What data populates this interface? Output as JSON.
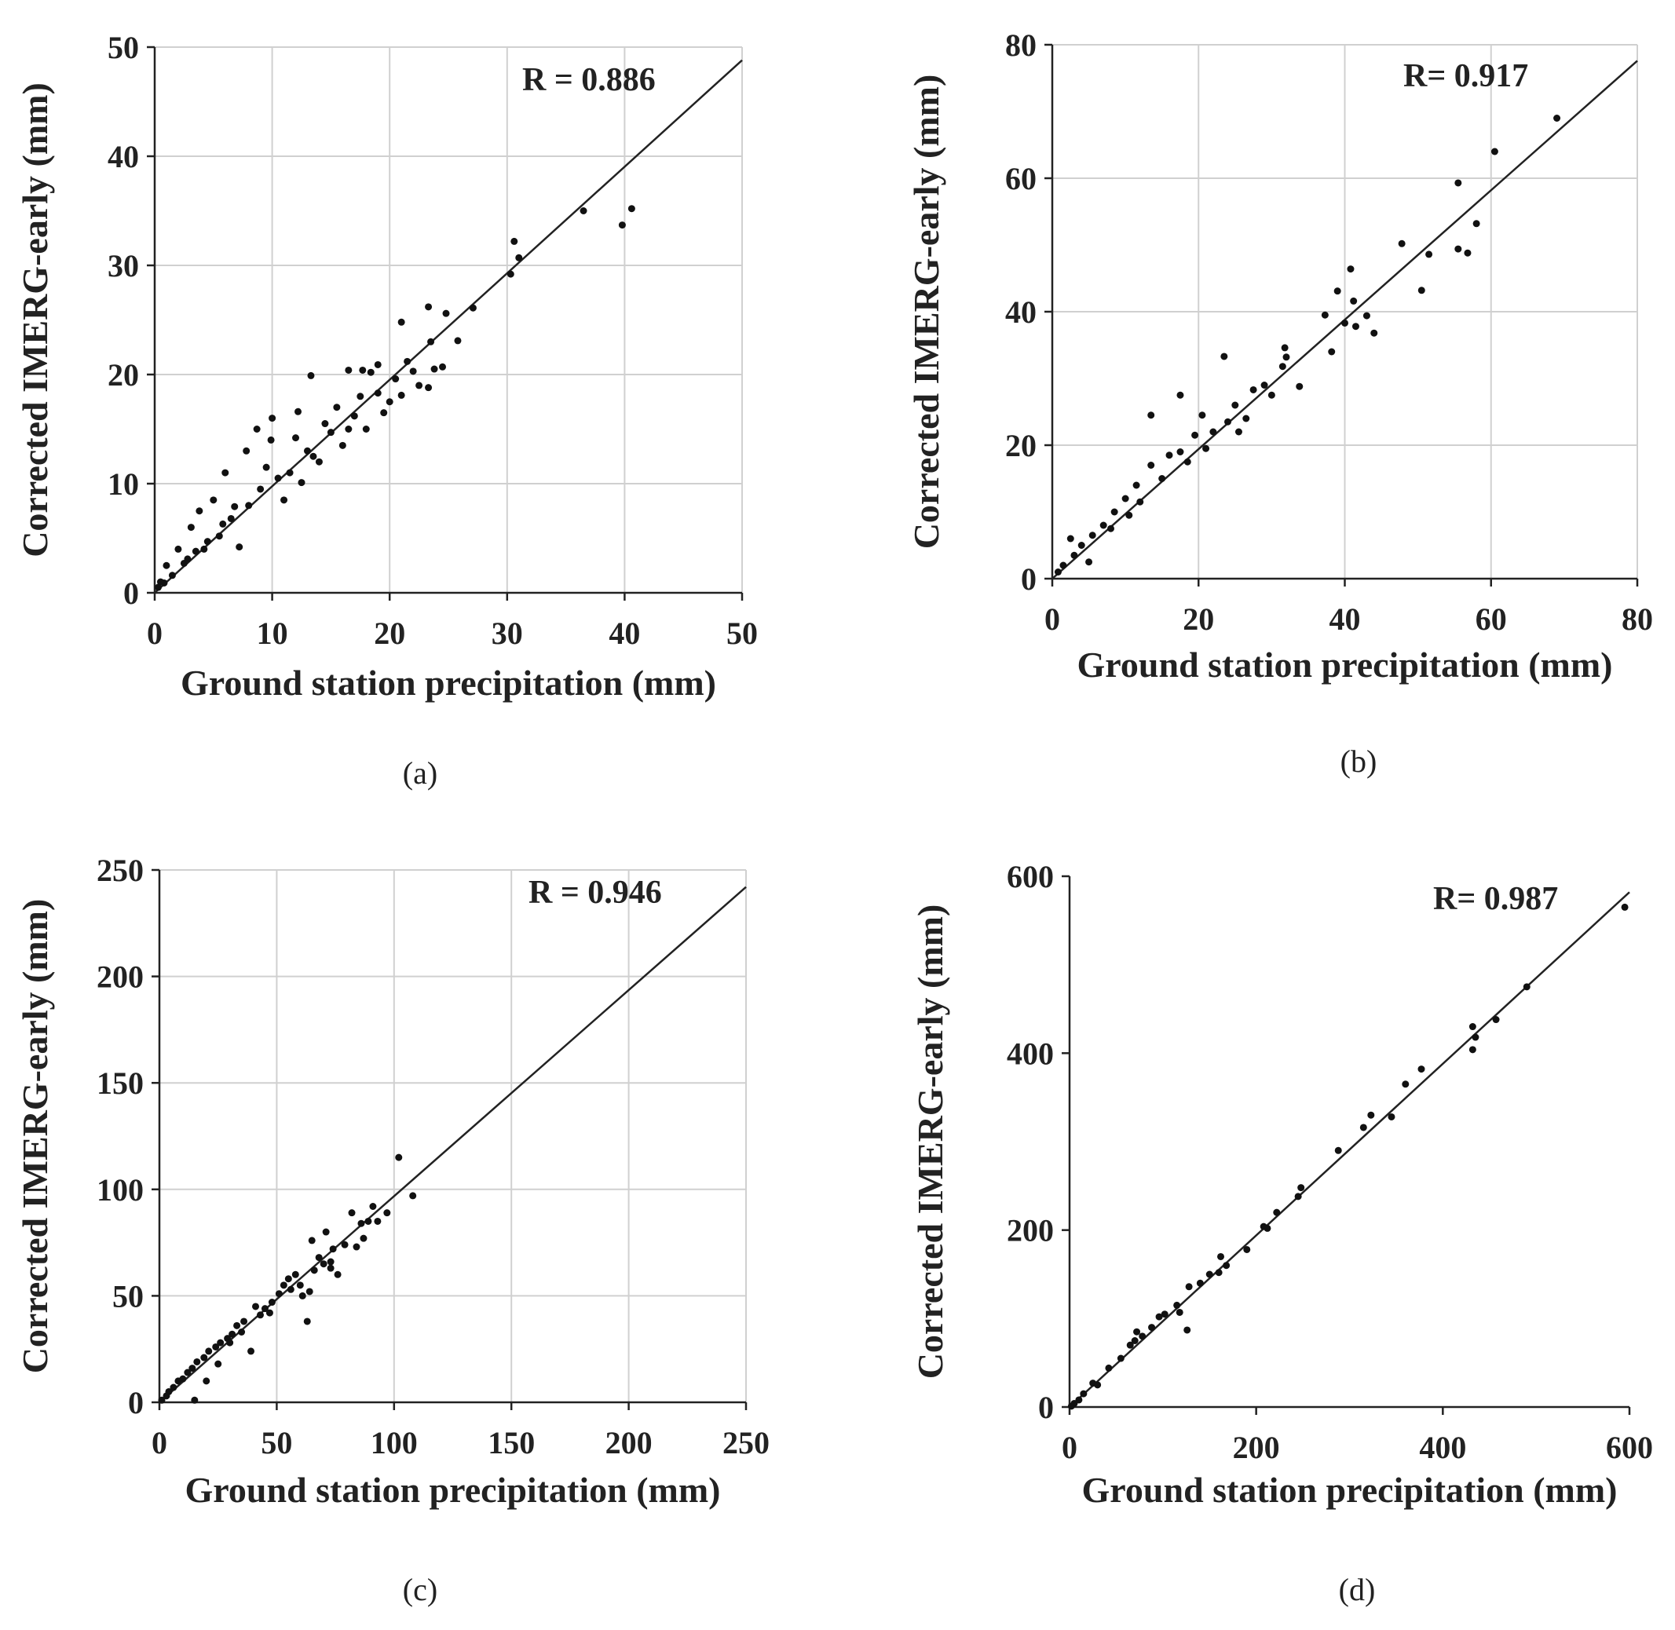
{
  "chart_data": [
    {
      "type": "scatter",
      "panel": "(a)",
      "xlabel": "Ground station precipitation (mm)",
      "ylabel": "Corrected IMERG-early (mm)",
      "annotation": "R = 0.886",
      "xlim": [
        0,
        50
      ],
      "ylim": [
        0,
        50
      ],
      "xticks": [
        0,
        10,
        20,
        30,
        40,
        50
      ],
      "yticks": [
        0,
        10,
        20,
        30,
        40,
        50
      ],
      "grid": true,
      "fit_line": {
        "x": [
          0,
          50
        ],
        "y": [
          0,
          48.8
        ]
      },
      "points": [
        [
          30.6,
          32.2
        ],
        [
          31.0,
          30.7
        ],
        [
          30.3,
          29.2
        ],
        [
          36.5,
          35.0
        ],
        [
          39.8,
          33.7
        ],
        [
          40.6,
          35.2
        ],
        [
          27.1,
          26.1
        ],
        [
          25.8,
          23.1
        ],
        [
          24.8,
          25.6
        ],
        [
          23.3,
          26.2
        ],
        [
          23.5,
          23.0
        ],
        [
          21.0,
          24.8
        ],
        [
          24.5,
          20.7
        ],
        [
          23.8,
          20.5
        ],
        [
          23.3,
          18.8
        ],
        [
          21.5,
          21.2
        ],
        [
          20.5,
          19.6
        ],
        [
          21.0,
          18.1
        ],
        [
          22.0,
          20.3
        ],
        [
          19.0,
          20.9
        ],
        [
          18.4,
          20.2
        ],
        [
          17.7,
          20.4
        ],
        [
          16.5,
          20.4
        ],
        [
          13.3,
          19.9
        ],
        [
          12.2,
          16.6
        ],
        [
          10.0,
          16.0
        ],
        [
          8.7,
          15.0
        ],
        [
          9.9,
          14.0
        ],
        [
          7.8,
          13.0
        ],
        [
          6.0,
          11.0
        ],
        [
          5.0,
          8.5
        ],
        [
          3.8,
          7.5
        ],
        [
          3.1,
          6.0
        ],
        [
          2.0,
          4.0
        ],
        [
          1.0,
          2.5
        ],
        [
          0.5,
          1.0
        ],
        [
          0.3,
          0.5
        ],
        [
          7.2,
          4.2
        ],
        [
          11.0,
          8.5
        ],
        [
          12.5,
          10.1
        ],
        [
          14.0,
          12.0
        ],
        [
          16.0,
          13.5
        ],
        [
          18.0,
          15.0
        ],
        [
          19.5,
          16.5
        ],
        [
          17.5,
          18.0
        ],
        [
          15.5,
          17.0
        ],
        [
          14.5,
          15.5
        ],
        [
          13.0,
          13.0
        ],
        [
          11.5,
          11.0
        ],
        [
          10.5,
          10.5
        ],
        [
          9.0,
          9.5
        ],
        [
          8.0,
          8.0
        ],
        [
          6.5,
          6.8
        ],
        [
          5.5,
          5.2
        ],
        [
          4.5,
          4.7
        ],
        [
          3.5,
          3.8
        ],
        [
          2.5,
          2.7
        ],
        [
          1.5,
          1.6
        ],
        [
          0.8,
          0.9
        ],
        [
          2.8,
          3.1
        ],
        [
          4.2,
          4.0
        ],
        [
          5.8,
          6.3
        ],
        [
          6.8,
          7.9
        ],
        [
          9.5,
          11.5
        ],
        [
          12.0,
          14.2
        ],
        [
          15.0,
          14.7
        ],
        [
          17.0,
          16.2
        ],
        [
          19.0,
          18.3
        ],
        [
          20.0,
          17.5
        ],
        [
          22.5,
          19.0
        ],
        [
          16.5,
          15.0
        ],
        [
          13.5,
          12.5
        ]
      ],
      "caption": "(a)"
    },
    {
      "type": "scatter",
      "panel": "(b)",
      "xlabel": "Ground station precipitation (mm)",
      "ylabel": "Corrected IMERG-early (mm)",
      "annotation": "R= 0.917",
      "xlim": [
        0,
        80
      ],
      "ylim": [
        0,
        80
      ],
      "xticks": [
        0,
        20,
        40,
        60,
        80
      ],
      "yticks": [
        0,
        20,
        40,
        60,
        80
      ],
      "grid": true,
      "fit_line": {
        "x": [
          0,
          80
        ],
        "y": [
          0,
          77.6
        ]
      },
      "points": [
        [
          69.0,
          69.0
        ],
        [
          60.5,
          64.0
        ],
        [
          55.5,
          59.3
        ],
        [
          58.0,
          53.2
        ],
        [
          55.5,
          49.4
        ],
        [
          56.8,
          48.8
        ],
        [
          51.5,
          48.6
        ],
        [
          50.5,
          43.2
        ],
        [
          47.8,
          50.2
        ],
        [
          40.8,
          46.4
        ],
        [
          41.2,
          41.6
        ],
        [
          39.0,
          43.1
        ],
        [
          37.3,
          39.5
        ],
        [
          40.0,
          38.3
        ],
        [
          43.0,
          39.4
        ],
        [
          44.0,
          36.8
        ],
        [
          41.5,
          37.8
        ],
        [
          38.2,
          34.0
        ],
        [
          33.8,
          28.8
        ],
        [
          31.8,
          34.6
        ],
        [
          32.0,
          33.2
        ],
        [
          31.5,
          31.8
        ],
        [
          23.5,
          33.3
        ],
        [
          17.5,
          27.5
        ],
        [
          13.5,
          24.5
        ],
        [
          29.0,
          29.0
        ],
        [
          30.0,
          27.5
        ],
        [
          27.5,
          28.3
        ],
        [
          25.0,
          26.0
        ],
        [
          24.0,
          23.5
        ],
        [
          22.0,
          22.0
        ],
        [
          20.5,
          24.5
        ],
        [
          19.5,
          21.5
        ],
        [
          17.5,
          19.0
        ],
        [
          16.0,
          18.5
        ],
        [
          13.5,
          17.0
        ],
        [
          11.5,
          14.0
        ],
        [
          10.0,
          12.0
        ],
        [
          8.5,
          10.0
        ],
        [
          7.0,
          8.0
        ],
        [
          5.5,
          6.5
        ],
        [
          4.0,
          5.0
        ],
        [
          2.5,
          6.0
        ],
        [
          3.0,
          3.5
        ],
        [
          1.5,
          2.0
        ],
        [
          0.8,
          1.0
        ],
        [
          5.0,
          2.5
        ],
        [
          8.0,
          7.5
        ],
        [
          10.5,
          9.5
        ],
        [
          12.0,
          11.5
        ],
        [
          15.0,
          15.0
        ],
        [
          18.5,
          17.5
        ],
        [
          21.0,
          19.5
        ],
        [
          25.5,
          22.0
        ],
        [
          26.5,
          24.0
        ]
      ],
      "caption": "(b)"
    },
    {
      "type": "scatter",
      "panel": "(c)",
      "xlabel": "Ground station precipitation (mm)",
      "ylabel": "Corrected IMERG-early (mm)",
      "annotation": "R = 0.946",
      "xlim": [
        0,
        250
      ],
      "ylim": [
        0,
        250
      ],
      "xticks": [
        0,
        50,
        100,
        150,
        200,
        250
      ],
      "yticks": [
        0,
        50,
        100,
        150,
        200,
        250
      ],
      "grid": true,
      "fit_line": {
        "x": [
          0,
          250
        ],
        "y": [
          0,
          242
        ]
      },
      "points": [
        [
          102,
          115
        ],
        [
          108,
          97
        ],
        [
          97,
          89
        ],
        [
          91,
          92
        ],
        [
          93,
          85
        ],
        [
          89,
          85
        ],
        [
          87,
          77
        ],
        [
          82,
          89
        ],
        [
          84,
          73
        ],
        [
          79,
          74
        ],
        [
          74,
          72
        ],
        [
          71,
          80
        ],
        [
          73,
          66
        ],
        [
          65,
          76
        ],
        [
          68,
          68
        ],
        [
          70,
          65
        ],
        [
          66,
          62
        ],
        [
          63,
          38
        ],
        [
          64,
          52
        ],
        [
          61,
          50
        ],
        [
          58,
          60
        ],
        [
          55,
          58
        ],
        [
          53,
          55
        ],
        [
          51,
          51
        ],
        [
          48,
          47
        ],
        [
          45,
          44
        ],
        [
          41,
          45
        ],
        [
          39,
          24
        ],
        [
          36,
          38
        ],
        [
          33,
          36
        ],
        [
          31,
          32
        ],
        [
          29,
          30
        ],
        [
          26,
          28
        ],
        [
          24,
          26
        ],
        [
          21,
          24
        ],
        [
          19,
          21
        ],
        [
          16,
          19
        ],
        [
          14,
          16
        ],
        [
          12,
          14
        ],
        [
          10,
          11
        ],
        [
          8,
          10
        ],
        [
          6,
          7
        ],
        [
          4,
          5
        ],
        [
          3,
          3
        ],
        [
          1,
          1
        ],
        [
          15,
          1
        ],
        [
          20,
          10
        ],
        [
          25,
          18
        ],
        [
          30,
          28
        ],
        [
          35,
          33
        ],
        [
          43,
          41
        ],
        [
          47,
          42
        ],
        [
          56,
          53
        ],
        [
          60,
          55
        ],
        [
          73,
          63
        ],
        [
          76,
          60
        ],
        [
          86,
          84
        ]
      ],
      "caption": "(c)"
    },
    {
      "type": "scatter",
      "panel": "(d)",
      "xlabel": "Ground station precipitation (mm)",
      "ylabel": "Corrected IMERG-early (mm)",
      "annotation": "R= 0.987",
      "xlim": [
        0,
        600
      ],
      "ylim": [
        0,
        600
      ],
      "xticks": [
        0,
        200,
        400,
        600
      ],
      "yticks": [
        0,
        200,
        400,
        600
      ],
      "grid": false,
      "fit_line": {
        "x": [
          0,
          600
        ],
        "y": [
          0,
          582
        ]
      },
      "points": [
        [
          595,
          565
        ],
        [
          490,
          475
        ],
        [
          457,
          438
        ],
        [
          432,
          430
        ],
        [
          435,
          418
        ],
        [
          432,
          404
        ],
        [
          377,
          382
        ],
        [
          360,
          365
        ],
        [
          345,
          328
        ],
        [
          323,
          330
        ],
        [
          315,
          316
        ],
        [
          288,
          290
        ],
        [
          248,
          248
        ],
        [
          245,
          238
        ],
        [
          222,
          220
        ],
        [
          212,
          202
        ],
        [
          208,
          204
        ],
        [
          190,
          178
        ],
        [
          168,
          160
        ],
        [
          162,
          170
        ],
        [
          160,
          152
        ],
        [
          150,
          150
        ],
        [
          140,
          140
        ],
        [
          128,
          136
        ],
        [
          126,
          87
        ],
        [
          118,
          107
        ],
        [
          115,
          115
        ],
        [
          102,
          105
        ],
        [
          96,
          102
        ],
        [
          88,
          90
        ],
        [
          78,
          80
        ],
        [
          72,
          85
        ],
        [
          70,
          75
        ],
        [
          65,
          70
        ],
        [
          55,
          55
        ],
        [
          42,
          44
        ],
        [
          30,
          25
        ],
        [
          25,
          27
        ],
        [
          15,
          15
        ],
        [
          10,
          8
        ],
        [
          5,
          4
        ],
        [
          2,
          1
        ]
      ],
      "caption": "(d)"
    }
  ]
}
